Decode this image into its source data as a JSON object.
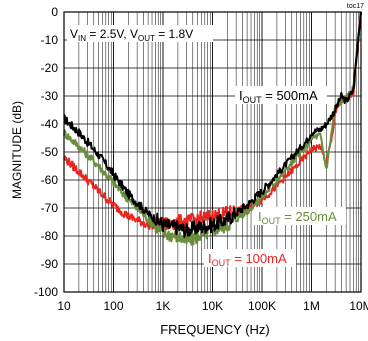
{
  "chart_data": {
    "type": "line",
    "tag": "toc17",
    "title_parts": {
      "vin_label": "V",
      "vin_sub": "IN",
      "vin_value": " = 2.5V, ",
      "vout_label": "V",
      "vout_sub": "OUT",
      "vout_value": " = 1.8V"
    },
    "xlabel": "FREQUENCY (Hz)",
    "ylabel": "MAGNITUDE (dB)",
    "x_scale": "log",
    "xlim": [
      10,
      10000000
    ],
    "ylim": [
      -100,
      0
    ],
    "grid": true,
    "x_ticks": [
      {
        "value": 10,
        "label": "10"
      },
      {
        "value": 100,
        "label": "100"
      },
      {
        "value": 1000,
        "label": "1K"
      },
      {
        "value": 10000,
        "label": "10K"
      },
      {
        "value": 100000,
        "label": "100K"
      },
      {
        "value": 1000000,
        "label": "1M"
      },
      {
        "value": 10000000,
        "label": "10M"
      }
    ],
    "y_ticks": [
      {
        "value": 0,
        "label": "0"
      },
      {
        "value": -10,
        "label": "-10"
      },
      {
        "value": -20,
        "label": "-20"
      },
      {
        "value": -30,
        "label": "-30"
      },
      {
        "value": -40,
        "label": "-40"
      },
      {
        "value": -50,
        "label": "-50"
      },
      {
        "value": -60,
        "label": "-60"
      },
      {
        "value": -70,
        "label": "-70"
      },
      {
        "value": -80,
        "label": "-80"
      },
      {
        "value": -90,
        "label": "-90"
      },
      {
        "value": -100,
        "label": "-100"
      }
    ],
    "series": [
      {
        "name_prefix": "I",
        "name_sub": "OUT",
        "name_suffix": " = 500mA",
        "color": "#000000",
        "x": [
          10,
          20,
          50,
          100,
          200,
          500,
          1000,
          2000,
          3000,
          5000,
          10000,
          20000,
          50000,
          100000,
          200000,
          500000,
          800000,
          1000000,
          1500000,
          2000000,
          3000000,
          4000000,
          5000000,
          7000000,
          10000000
        ],
        "y": [
          -38,
          -43,
          -51,
          -58,
          -65,
          -72,
          -76,
          -77,
          -78,
          -77,
          -76,
          -74,
          -69,
          -64,
          -58,
          -50,
          -46,
          -43,
          -42,
          -40,
          -35,
          -30,
          -32,
          -28,
          1
        ]
      },
      {
        "name_prefix": "I",
        "name_sub": "OUT",
        "name_suffix": " = 250mA",
        "color": "#6b8e3e",
        "x": [
          10,
          20,
          50,
          100,
          200,
          500,
          1000,
          2000,
          3000,
          5000,
          10000,
          20000,
          50000,
          100000,
          200000,
          500000,
          800000,
          1000000,
          1500000,
          2000000,
          2500000,
          3000000,
          4000000,
          5000000,
          7000000,
          10000000
        ],
        "y": [
          -43,
          -48,
          -55,
          -61,
          -67,
          -74,
          -79,
          -80,
          -82,
          -80,
          -78,
          -76,
          -71,
          -66,
          -60,
          -52,
          -48,
          -45,
          -44,
          -56,
          -44,
          -34,
          -32,
          -31,
          -27,
          1
        ]
      },
      {
        "name_prefix": "I",
        "name_sub": "OUT",
        "name_suffix": " = 100mA",
        "color": "#e8251e",
        "x": [
          10,
          20,
          50,
          100,
          200,
          500,
          1000,
          2000,
          3000,
          5000,
          10000,
          20000,
          50000,
          100000,
          200000,
          500000,
          800000,
          1000000,
          1500000,
          2000000,
          2500000,
          3000000,
          4000000,
          5000000,
          7000000,
          10000000
        ],
        "y": [
          -52,
          -57,
          -64,
          -69,
          -73,
          -76,
          -76,
          -75,
          -75,
          -74,
          -73,
          -72,
          -70,
          -67,
          -62,
          -55,
          -51,
          -49,
          -48,
          -54,
          -46,
          -36,
          -32,
          -31,
          -29,
          1
        ]
      }
    ]
  }
}
